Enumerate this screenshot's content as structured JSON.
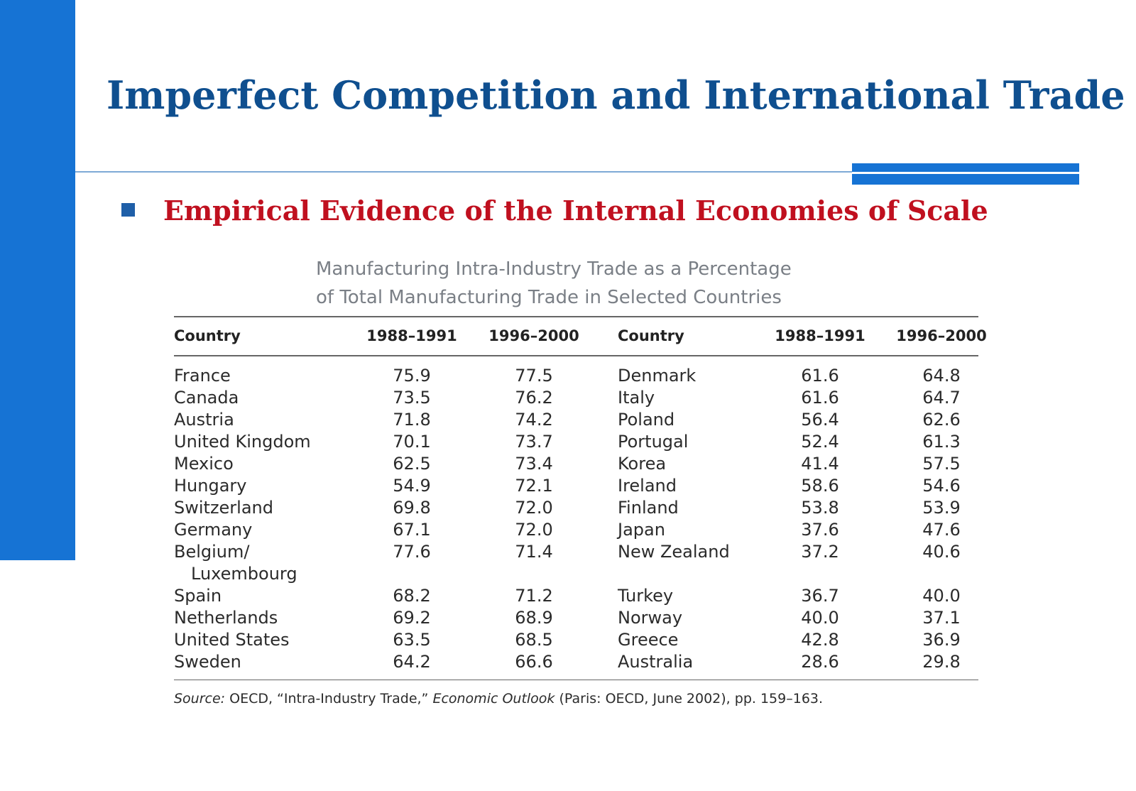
{
  "slide": {
    "title": "Imperfect Competition and International Trade",
    "subtitle": "Empirical Evidence of the Internal Economies of Scale"
  },
  "table": {
    "caption_line1": "Manufacturing Intra-Industry Trade as a Percentage",
    "caption_line2": "of Total Manufacturing Trade in Selected Countries",
    "headers": [
      "Country",
      "1988–1991",
      "1996–2000",
      "Country",
      "1988–1991",
      "1996–2000"
    ],
    "left_rows": [
      {
        "country": "France",
        "a": "75.9",
        "b": "77.5"
      },
      {
        "country": "Canada",
        "a": "73.5",
        "b": "76.2"
      },
      {
        "country": "Austria",
        "a": "71.8",
        "b": "74.2"
      },
      {
        "country": "United Kingdom",
        "a": "70.1",
        "b": "73.7"
      },
      {
        "country": "Mexico",
        "a": "62.5",
        "b": "73.4"
      },
      {
        "country": "Hungary",
        "a": "54.9",
        "b": "72.1"
      },
      {
        "country": "Switzerland",
        "a": "69.8",
        "b": "72.0"
      },
      {
        "country": "Germany",
        "a": "67.1",
        "b": "72.0"
      },
      {
        "country": "Belgium/",
        "country_cont": "Luxembourg",
        "a": "77.6",
        "b": "71.4"
      },
      {
        "country": "Spain",
        "a": "68.2",
        "b": "71.2"
      },
      {
        "country": "Netherlands",
        "a": "69.2",
        "b": "68.9"
      },
      {
        "country": "United States",
        "a": "63.5",
        "b": "68.5"
      },
      {
        "country": "Sweden",
        "a": "64.2",
        "b": "66.6"
      }
    ],
    "right_rows": [
      {
        "country": "Denmark",
        "a": "61.6",
        "b": "64.8"
      },
      {
        "country": "Italy",
        "a": "61.6",
        "b": "64.7"
      },
      {
        "country": "Poland",
        "a": "56.4",
        "b": "62.6"
      },
      {
        "country": "Portugal",
        "a": "52.4",
        "b": "61.3"
      },
      {
        "country": "Korea",
        "a": "41.4",
        "b": "57.5"
      },
      {
        "country": "Ireland",
        "a": "58.6",
        "b": "54.6"
      },
      {
        "country": "Finland",
        "a": "53.8",
        "b": "53.9"
      },
      {
        "country": "Japan",
        "a": "37.6",
        "b": "47.6"
      },
      {
        "country": "New Zealand",
        "a": "37.2",
        "b": "40.6"
      },
      {
        "country": "Turkey",
        "a": "36.7",
        "b": "40.0"
      },
      {
        "country": "Norway",
        "a": "40.0",
        "b": "37.1"
      },
      {
        "country": "Greece",
        "a": "42.8",
        "b": "36.9"
      },
      {
        "country": "Australia",
        "a": "28.6",
        "b": "29.8"
      }
    ],
    "source_label": "Source:",
    "source_text1": " OECD, “Intra-Industry Trade,” ",
    "source_italic": "Economic Outlook",
    "source_text2": " (Paris: OECD, June 2002), pp. 159–163."
  }
}
